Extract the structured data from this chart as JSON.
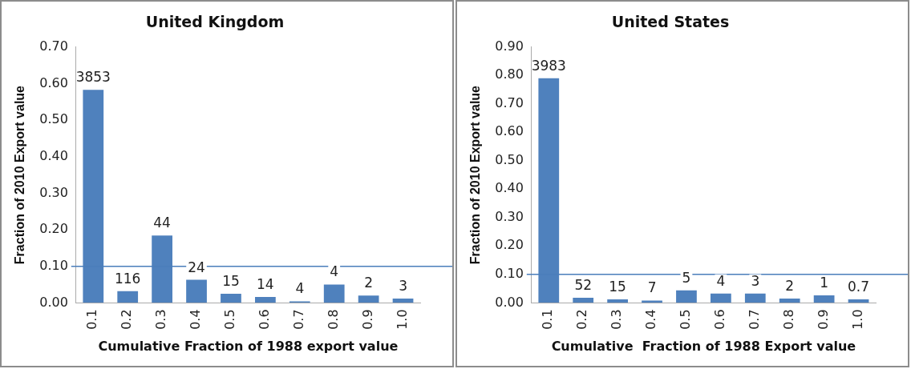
{
  "chart_data": [
    {
      "type": "bar",
      "title": "United Kingdom",
      "xlabel": "Cumulative Fraction of 1988 export value",
      "ylabel": "Fraction of 2010 Export value",
      "categories": [
        "0.1",
        "0.2",
        "0.3",
        "0.4",
        "0.5",
        "0.6",
        "0.7",
        "0.8",
        "0.9",
        "1.0"
      ],
      "values": [
        0.583,
        0.032,
        0.184,
        0.063,
        0.025,
        0.016,
        0.004,
        0.05,
        0.02,
        0.012
      ],
      "annotations": [
        {
          "text": "3853",
          "x": "0.1",
          "y": 0.583
        },
        {
          "text": "116",
          "x": "0.2",
          "y": 0.032
        },
        {
          "text": "44",
          "x": "0.3",
          "y": 0.184
        },
        {
          "text": "24",
          "x": "0.4",
          "y": 0.063
        },
        {
          "text": "15",
          "x": "0.5",
          "y": 0.025
        },
        {
          "text": "14",
          "x": "0.6",
          "y": 0.016
        },
        {
          "text": "4",
          "x": "0.7",
          "y": 0.004
        },
        {
          "text": "4",
          "x": "0.8",
          "y": 0.05
        },
        {
          "text": "2",
          "x": "0.9",
          "y": 0.02
        },
        {
          "text": "3",
          "x": "1.0",
          "y": 0.012
        }
      ],
      "color": "#4f81bd",
      "ylim": [
        0,
        0.7
      ],
      "yticks": [
        {
          "value": 0,
          "label": "0.00"
        },
        {
          "value": 0.1,
          "label": "0.10"
        },
        {
          "value": 0.2,
          "label": "0.20"
        },
        {
          "value": 0.3,
          "label": "0.30"
        },
        {
          "value": 0.4,
          "label": "0.40"
        },
        {
          "value": 0.5,
          "label": "0.50"
        },
        {
          "value": 0.6,
          "label": "0.60"
        },
        {
          "value": 0.7,
          "label": "0.70"
        }
      ],
      "ref_lines": [
        {
          "axis": "y",
          "value": 0.1,
          "color": "#4a7ebb"
        }
      ],
      "grid": false,
      "legend": false
    },
    {
      "type": "bar",
      "title": "United States",
      "xlabel": "Cumulative  Fraction of 1988 Export value",
      "ylabel": "Fraction of 2010 Export value",
      "categories": [
        "0.1",
        "0.2",
        "0.3",
        "0.4",
        "0.5",
        "0.6",
        "0.7",
        "0.8",
        "0.9",
        "1.0"
      ],
      "values": [
        0.79,
        0.018,
        0.012,
        0.008,
        0.044,
        0.033,
        0.033,
        0.015,
        0.026,
        0.012
      ],
      "annotations": [
        {
          "text": "3983",
          "x": "0.1",
          "y": 0.79
        },
        {
          "text": "52",
          "x": "0.2",
          "y": 0.018
        },
        {
          "text": "15",
          "x": "0.3",
          "y": 0.012
        },
        {
          "text": "7",
          "x": "0.4",
          "y": 0.008
        },
        {
          "text": "5",
          "x": "0.5",
          "y": 0.044
        },
        {
          "text": "4",
          "x": "0.6",
          "y": 0.033
        },
        {
          "text": "3",
          "x": "0.7",
          "y": 0.033
        },
        {
          "text": "2",
          "x": "0.8",
          "y": 0.015
        },
        {
          "text": "1",
          "x": "0.9",
          "y": 0.026
        },
        {
          "text": "0.7",
          "x": "1.0",
          "y": 0.012
        }
      ],
      "color": "#4f81bd",
      "ylim": [
        0,
        0.9
      ],
      "yticks": [
        {
          "value": 0,
          "label": "0.00"
        },
        {
          "value": 0.1,
          "label": "0.10"
        },
        {
          "value": 0.2,
          "label": "0.20"
        },
        {
          "value": 0.3,
          "label": "0.30"
        },
        {
          "value": 0.4,
          "label": "0.40"
        },
        {
          "value": 0.5,
          "label": "0.50"
        },
        {
          "value": 0.6,
          "label": "0.60"
        },
        {
          "value": 0.7,
          "label": "0.70"
        },
        {
          "value": 0.8,
          "label": "0.80"
        },
        {
          "value": 0.9,
          "label": "0.90"
        }
      ],
      "ref_lines": [
        {
          "axis": "y",
          "value": 0.1,
          "color": "#4a7ebb"
        }
      ],
      "grid": false,
      "legend": false
    }
  ]
}
